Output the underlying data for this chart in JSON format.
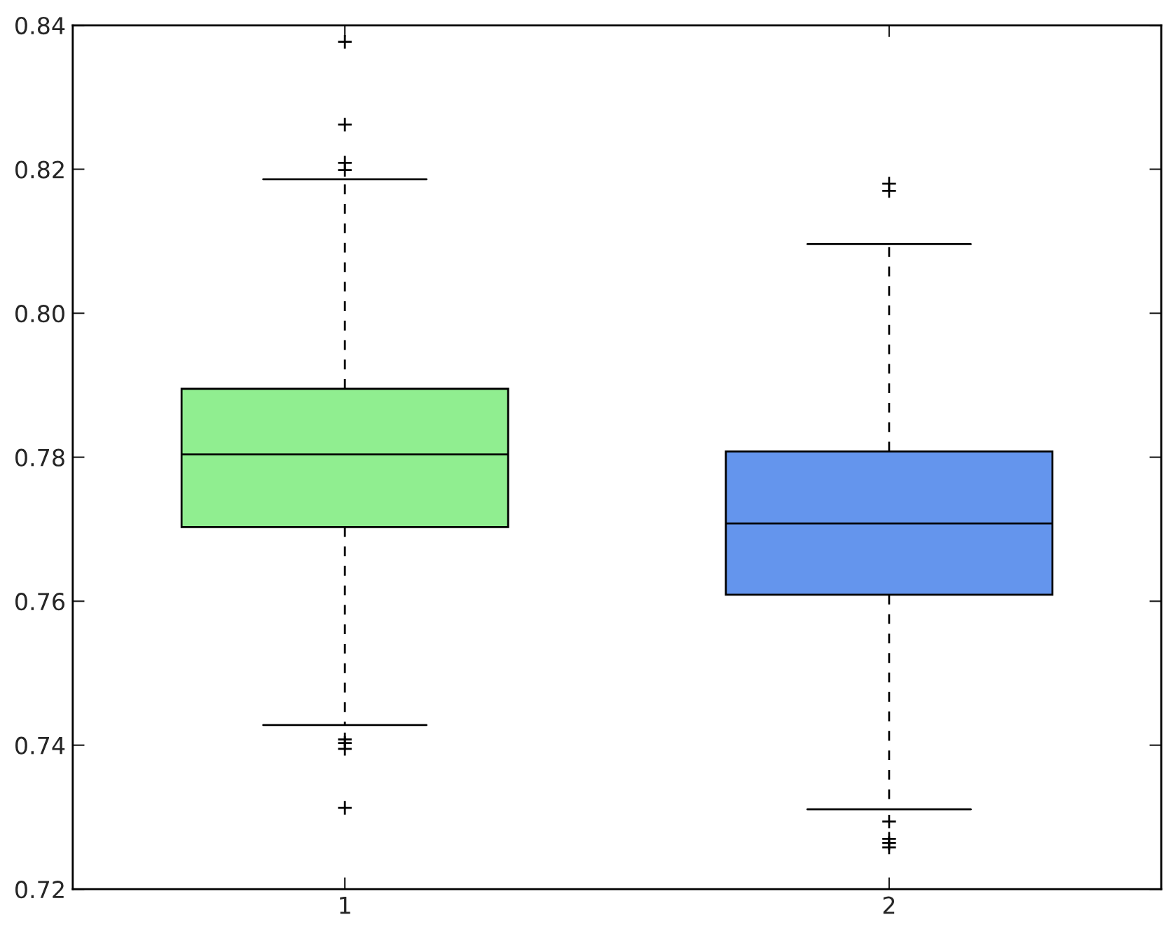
{
  "chart_data": {
    "type": "box",
    "categories": [
      "1",
      "2"
    ],
    "boxes": [
      {
        "low": 0.7428,
        "q1": 0.7703,
        "median": 0.7804,
        "q3": 0.7895,
        "high": 0.8186,
        "outliers": [
          0.8377,
          0.8262,
          0.8209,
          0.8199,
          0.7408,
          0.7403,
          0.7395,
          0.7313
        ]
      },
      {
        "low": 0.7311,
        "q1": 0.7609,
        "median": 0.7708,
        "q3": 0.7808,
        "high": 0.8096,
        "outliers": [
          0.818,
          0.817,
          0.7294,
          0.727,
          0.7264,
          0.7258
        ]
      }
    ],
    "colors": [
      "#90ee90",
      "#6495ed"
    ],
    "ylim": [
      0.72,
      0.84
    ],
    "yticks": [
      {
        "value": 0.72,
        "label": "0.72"
      },
      {
        "value": 0.74,
        "label": "0.74"
      },
      {
        "value": 0.76,
        "label": "0.76"
      },
      {
        "value": 0.78,
        "label": "0.78"
      },
      {
        "value": 0.8,
        "label": "0.80"
      },
      {
        "value": 0.82,
        "label": "0.82"
      },
      {
        "value": 0.84,
        "label": "0.84"
      }
    ],
    "grid": false,
    "marker": "cross",
    "line_style": "dashed"
  }
}
